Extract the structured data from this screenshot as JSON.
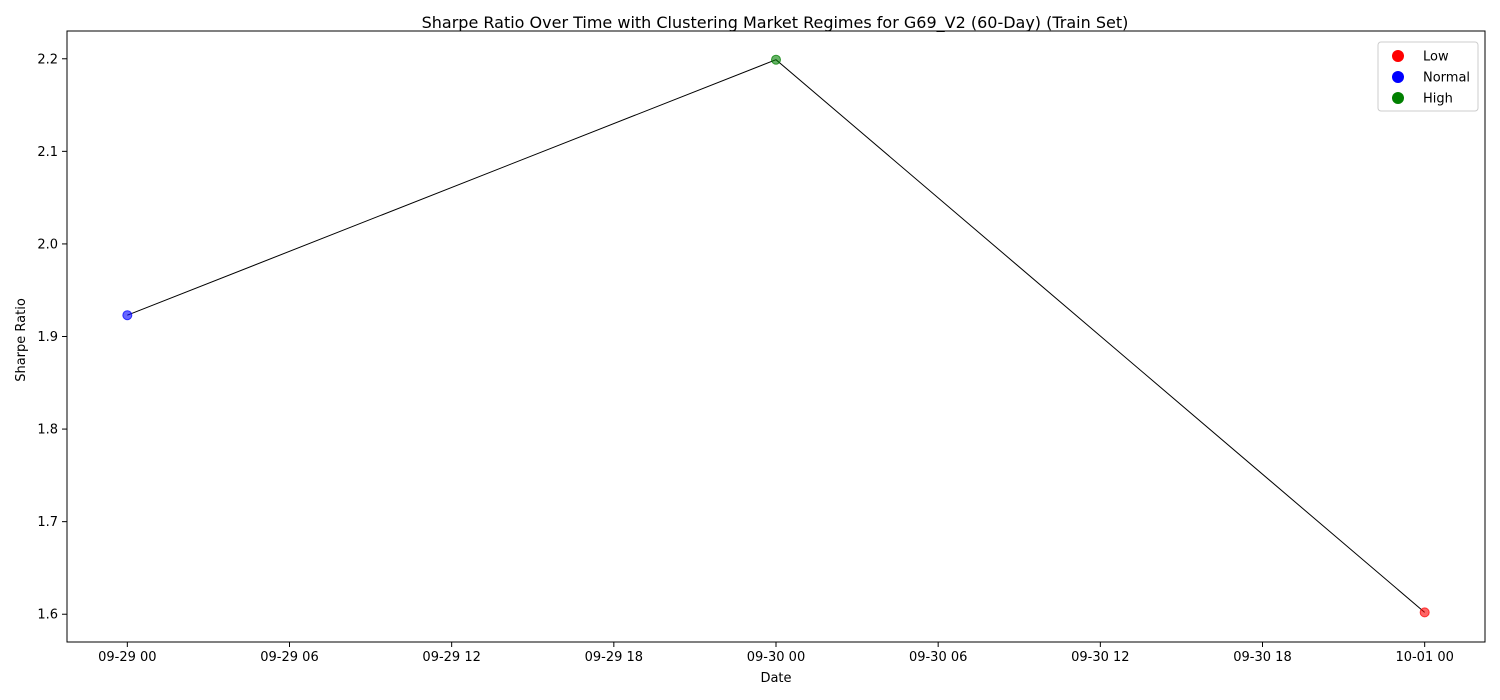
{
  "chart_data": {
    "type": "line",
    "title": "Sharpe Ratio Over Time with Clustering Market Regimes for G69_V2 (60-Day) (Train Set)",
    "xlabel": "Date",
    "ylabel": "Sharpe Ratio",
    "x_ticks": [
      "09-29 00",
      "09-29 06",
      "09-29 12",
      "09-29 18",
      "09-30 00",
      "09-30 06",
      "09-30 12",
      "09-30 18",
      "10-01 00"
    ],
    "y_ticks": [
      "1.6",
      "1.7",
      "1.8",
      "1.9",
      "2.0",
      "2.1",
      "2.2"
    ],
    "xlim": [
      -0.093,
      2.093
    ],
    "ylim": [
      1.57,
      2.23
    ],
    "grid": false,
    "legend_position": "top-right",
    "line_color": "#000000",
    "points": [
      {
        "x": "09-29 00",
        "x_index": 0,
        "y": 1.923,
        "regime": "Normal"
      },
      {
        "x": "09-30 00",
        "x_index": 1,
        "y": 2.199,
        "regime": "High"
      },
      {
        "x": "10-01 00",
        "x_index": 2,
        "y": 1.602,
        "regime": "Low"
      }
    ],
    "legend": [
      {
        "label": "Low",
        "color": "#ff0000"
      },
      {
        "label": "Normal",
        "color": "#0000ff"
      },
      {
        "label": "High",
        "color": "#008000"
      }
    ]
  }
}
